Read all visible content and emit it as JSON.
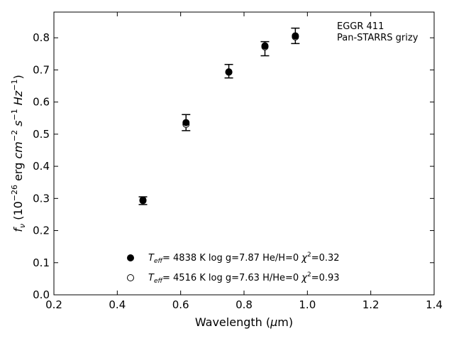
{
  "chart_data": {
    "type": "scatter",
    "xlabel_main": "Wavelength (",
    "xlabel_unit_mu": "μ",
    "xlabel_unit_rest": "m)",
    "ylabel_f": "f",
    "ylabel_sub": "ν",
    "ylabel_open": " (10",
    "ylabel_exp1": "−26",
    "ylabel_erg": " erg ",
    "ylabel_cm": "cm",
    "ylabel_exp2": "−2",
    "ylabel_s": " s",
    "ylabel_exp3": "−1",
    "ylabel_hz": " Hz",
    "ylabel_exp4": "−1",
    "ylabel_close": ")",
    "xlim": [
      0.2,
      1.4
    ],
    "ylim": [
      0.0,
      0.88
    ],
    "xticks": [
      "0.2",
      "0.4",
      "0.6",
      "0.8",
      "1.0",
      "1.2",
      "1.4"
    ],
    "yticks": [
      "0.0",
      "0.1",
      "0.2",
      "0.3",
      "0.4",
      "0.5",
      "0.6",
      "0.7",
      "0.8"
    ],
    "annotation": [
      "EGGR 411",
      "Pan-STARRS grizy"
    ],
    "observed": {
      "x": [
        0.481,
        0.617,
        0.752,
        0.866,
        0.962
      ],
      "y": [
        0.293,
        0.536,
        0.696,
        0.766,
        0.806
      ],
      "err": [
        0.012,
        0.025,
        0.021,
        0.022,
        0.024
      ]
    },
    "series": [
      {
        "marker": "filled",
        "x": [
          0.481,
          0.617,
          0.752,
          0.866,
          0.962
        ],
        "y": [
          0.295,
          0.536,
          0.694,
          0.775,
          0.806
        ],
        "legend": {
          "t": "T",
          "tsub": "eff",
          "teq": "=  4838 K  log g=7.87  He/H=0  ",
          "chi": "χ",
          "chisup": "2",
          "chival": "=0.32"
        }
      },
      {
        "marker": "open",
        "x": [
          0.481,
          0.617,
          0.752,
          0.866,
          0.962
        ],
        "y": [
          0.293,
          0.531,
          0.693,
          0.772,
          0.803
        ],
        "legend": {
          "t": "T",
          "tsub": "eff",
          "teq": "=  4516 K  log g=7.63  H/He=0  ",
          "chi": "χ",
          "chisup": "2",
          "chival": "=0.93"
        }
      }
    ],
    "grid": false,
    "legend_position": "bottom-center"
  }
}
